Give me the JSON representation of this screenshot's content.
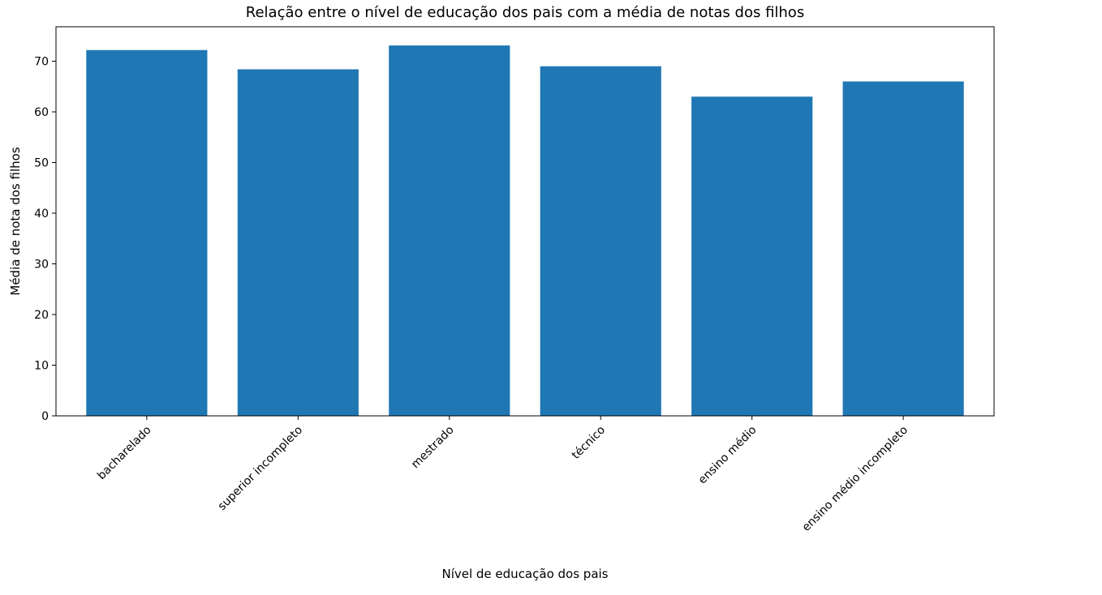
{
  "chart_data": {
    "type": "bar",
    "title": "Relação entre o nível de educação dos pais com a média de notas dos filhos",
    "xlabel": "Nível de educação dos pais",
    "ylabel": "Média de nota dos filhos",
    "categories": [
      "bacharelado",
      "superior incompleto",
      "mestrado",
      "técnico",
      "ensino médio",
      "ensino médio incompleto"
    ],
    "values": [
      72.2,
      68.4,
      73.1,
      69.0,
      63.0,
      66.0
    ],
    "ylim": [
      0,
      76.8
    ],
    "yticks": [
      0,
      10,
      20,
      30,
      40,
      50,
      60,
      70
    ],
    "xtick_rotation": "45 degrees",
    "grid": false,
    "legend": "none",
    "colors": {
      "bar": "#1f77b4",
      "axes": "#000000",
      "background": "#ffffff"
    }
  }
}
